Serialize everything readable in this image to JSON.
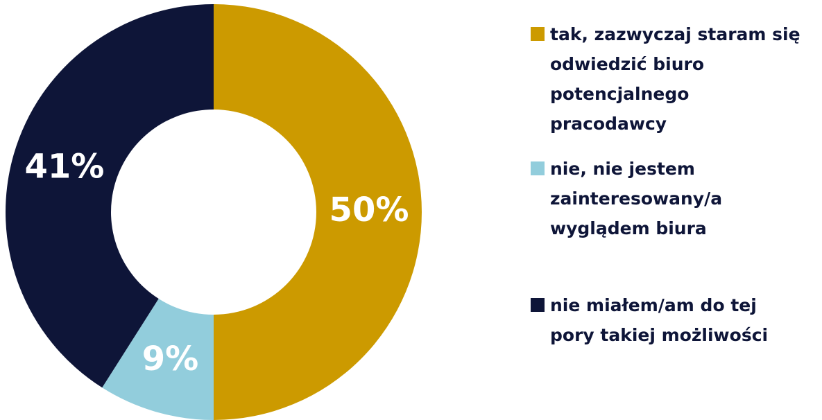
{
  "chart_data": {
    "type": "donut",
    "categories": [
      "tak, zazwyczaj staram się\nodwiedzić biuro\npotencjalnego\npracodawcy",
      "nie, nie jestem\nzainteresowany/a\nwyglądem biura",
      "nie miałem/am do tej\npory takiej możliwości"
    ],
    "values": [
      50,
      9,
      41
    ],
    "value_labels": [
      "50%",
      "9%",
      "41%"
    ],
    "colors": [
      "#CC9A00",
      "#92CDDC",
      "#0E1538"
    ],
    "legend": "right"
  }
}
